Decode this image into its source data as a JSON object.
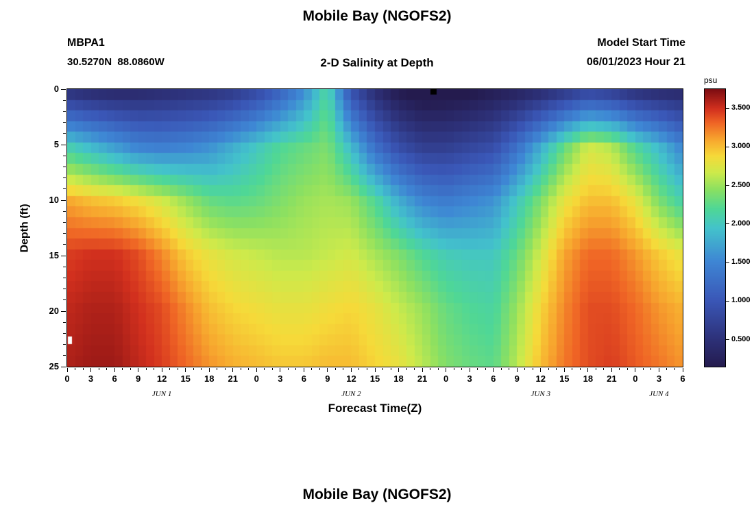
{
  "header": {
    "title": "Mobile Bay (NGOFS2)",
    "station_id": "MBPA1",
    "station_coords": "30.5270N  88.0860W",
    "subtitle": "2-D Salinity at Depth",
    "model_start_label": "Model Start Time",
    "model_start_value": "06/01/2023 Hour 21"
  },
  "footer": {
    "next_title": "Mobile Bay (NGOFS2)"
  },
  "chart_data": {
    "type": "heatmap",
    "title": "2-D Salinity at Depth",
    "xlabel": "Forecast Time(Z)",
    "ylabel": "Depth (ft)",
    "colorbar_label": "psu",
    "colorbar_ticks": [
      0.5,
      1.0,
      1.5,
      2.0,
      2.5,
      3.0,
      3.5
    ],
    "value_range": [
      0.15,
      3.75
    ],
    "x_hours_range": [
      0,
      78
    ],
    "x_tick_step": 3,
    "x_tick_labels": [
      "0",
      "3",
      "6",
      "9",
      "12",
      "15",
      "18",
      "21",
      "0",
      "3",
      "6",
      "9",
      "12",
      "15",
      "18",
      "21",
      "0",
      "3",
      "6",
      "9",
      "12",
      "15",
      "18",
      "21",
      "0",
      "3",
      "6"
    ],
    "day_labels": [
      {
        "label": "JUN 1",
        "hour": 12
      },
      {
        "label": "JUN 2",
        "hour": 36
      },
      {
        "label": "JUN 3",
        "hour": 60
      },
      {
        "label": "JUN 4",
        "hour": 75
      }
    ],
    "depth_ticks": [
      0,
      5,
      10,
      15,
      20,
      25
    ],
    "depth_range": [
      0,
      25
    ],
    "grid": {
      "time_hours": [
        0,
        3,
        6,
        9,
        12,
        15,
        18,
        21,
        24,
        27,
        30,
        33,
        36,
        39,
        42,
        45,
        48,
        51,
        54,
        57,
        60,
        63,
        66,
        69,
        72,
        75,
        78
      ],
      "depths_ft": [
        0,
        5,
        10,
        15,
        20,
        25
      ],
      "salinity_psu": [
        [
          0.6,
          0.5,
          0.45,
          0.45,
          0.5,
          0.55,
          0.6,
          0.7,
          0.9,
          1.2,
          1.6,
          2.2,
          1.0,
          0.5,
          0.2,
          0.08,
          0.1,
          0.15,
          0.25,
          0.35,
          0.5,
          0.7,
          0.9,
          0.8,
          0.6,
          0.5,
          0.45
        ],
        [
          2.1,
          1.9,
          1.7,
          1.5,
          1.45,
          1.5,
          1.6,
          1.8,
          2.0,
          2.2,
          2.3,
          2.4,
          1.9,
          1.3,
          0.9,
          0.7,
          0.7,
          0.8,
          0.9,
          1.3,
          1.8,
          2.3,
          2.7,
          2.6,
          2.2,
          1.9,
          1.5
        ],
        [
          3.1,
          3.0,
          2.95,
          2.85,
          2.7,
          2.5,
          2.3,
          2.25,
          2.3,
          2.4,
          2.5,
          2.55,
          2.5,
          2.2,
          1.8,
          1.5,
          1.4,
          1.5,
          1.6,
          2.0,
          2.4,
          2.8,
          3.0,
          3.0,
          2.8,
          2.4,
          2.1
        ],
        [
          3.45,
          3.5,
          3.5,
          3.4,
          3.2,
          2.95,
          2.8,
          2.7,
          2.65,
          2.6,
          2.6,
          2.65,
          2.7,
          2.55,
          2.4,
          2.2,
          2.05,
          2.0,
          2.0,
          2.3,
          2.7,
          3.1,
          3.3,
          3.3,
          3.15,
          2.95,
          2.8
        ],
        [
          3.55,
          3.6,
          3.6,
          3.5,
          3.4,
          3.2,
          3.0,
          2.9,
          2.85,
          2.8,
          2.8,
          2.85,
          2.9,
          2.8,
          2.65,
          2.5,
          2.3,
          2.2,
          2.15,
          2.5,
          2.9,
          3.2,
          3.4,
          3.4,
          3.3,
          3.15,
          3.05
        ],
        [
          3.6,
          3.65,
          3.65,
          3.55,
          3.45,
          3.3,
          3.15,
          3.05,
          3.0,
          2.95,
          2.95,
          3.0,
          3.0,
          2.9,
          2.8,
          2.6,
          2.4,
          2.3,
          2.25,
          2.6,
          3.0,
          3.25,
          3.4,
          3.45,
          3.35,
          3.25,
          3.15
        ]
      ]
    },
    "colormap": [
      {
        "t": 0.0,
        "c": "#241b4e"
      },
      {
        "t": 0.1,
        "c": "#2d3179"
      },
      {
        "t": 0.24,
        "c": "#3a57b7"
      },
      {
        "t": 0.38,
        "c": "#3e86d4"
      },
      {
        "t": 0.5,
        "c": "#43c3cb"
      },
      {
        "t": 0.57,
        "c": "#4fd796"
      },
      {
        "t": 0.64,
        "c": "#8ce061"
      },
      {
        "t": 0.7,
        "c": "#cdea4b"
      },
      {
        "t": 0.76,
        "c": "#f6da39"
      },
      {
        "t": 0.82,
        "c": "#f7a52e"
      },
      {
        "t": 0.88,
        "c": "#ef6425"
      },
      {
        "t": 0.93,
        "c": "#d2301e"
      },
      {
        "t": 1.0,
        "c": "#7d0d12"
      }
    ],
    "markers": [
      {
        "hour": 46.0,
        "depth": 0.0,
        "hours_wide": 0.8,
        "feet_tall": 0.5,
        "color": "#000000"
      },
      {
        "hour": 0.1,
        "depth": 23.2,
        "hours_wide": 0.5,
        "feet_tall": 0.7,
        "color": "#ffffff"
      }
    ]
  }
}
